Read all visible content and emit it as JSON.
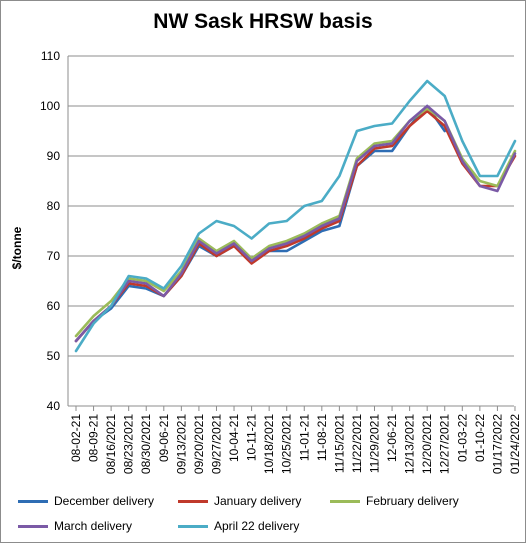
{
  "chart_data": {
    "type": "line",
    "title": "NW Sask HRSW basis",
    "xlabel": "",
    "ylabel": "$/tonne",
    "ylim": [
      40,
      110
    ],
    "yticks": [
      40,
      50,
      60,
      70,
      80,
      90,
      100,
      110
    ],
    "grid": "horizontal",
    "legend_position": "bottom",
    "x": [
      "08-02-21",
      "08-09-21",
      "08/16/2021",
      "08/23/2021",
      "08/30/2021",
      "09-06-21",
      "09/13/2021",
      "09/20/2021",
      "09/27/2021",
      "10-04-21",
      "10-11-21",
      "10/18/2021",
      "10/25/2021",
      "11-01-21",
      "11-08-21",
      "11/15/2021",
      "11/22/2021",
      "11/29/2021",
      "12-06-21",
      "12/13/2021",
      "12/20/2021",
      "12/27/2021",
      "01-03-22",
      "01-10-22",
      "01/17/2022",
      "01/24/2022"
    ],
    "series": [
      {
        "name": "December delivery",
        "color": "#2e6db4",
        "values": [
          53,
          57,
          59.5,
          64,
          63.5,
          62,
          66,
          72,
          70,
          72,
          69,
          71,
          71,
          73,
          75,
          76,
          88,
          91,
          91,
          96,
          100,
          95,
          null,
          null,
          null,
          null
        ]
      },
      {
        "name": "January delivery",
        "color": "#c0392b",
        "values": [
          53,
          57,
          60,
          64.5,
          64,
          62,
          66,
          72.5,
          70,
          72,
          68.5,
          71,
          72,
          73.5,
          75.5,
          77,
          88,
          91.5,
          92,
          96,
          99,
          96,
          88.5,
          84,
          84,
          90
        ]
      },
      {
        "name": "February delivery",
        "color": "#9bbb59",
        "values": [
          54,
          58,
          61,
          65.5,
          65,
          63,
          67,
          73.5,
          71,
          73,
          69.5,
          72,
          73,
          74.5,
          76.5,
          78,
          89.5,
          92.5,
          93,
          97,
          99.5,
          97,
          89.5,
          85,
          84,
          91
        ]
      },
      {
        "name": "March delivery",
        "color": "#7b5aa6",
        "values": [
          53,
          57,
          60,
          65,
          64.5,
          62,
          66.5,
          73,
          70.5,
          72.5,
          69,
          71.5,
          72.5,
          74,
          76,
          77.5,
          89,
          92,
          92.5,
          97,
          100,
          97,
          89,
          84,
          83,
          90.5
        ]
      },
      {
        "name": "April 22 delivery",
        "color": "#4bacc6",
        "values": [
          51,
          56.5,
          60,
          66,
          65.5,
          63.5,
          68,
          74.5,
          77,
          76,
          73.5,
          76.5,
          77,
          80,
          81,
          86,
          95,
          96,
          96.5,
          101,
          105,
          102,
          93,
          86,
          86,
          93
        ]
      }
    ]
  }
}
